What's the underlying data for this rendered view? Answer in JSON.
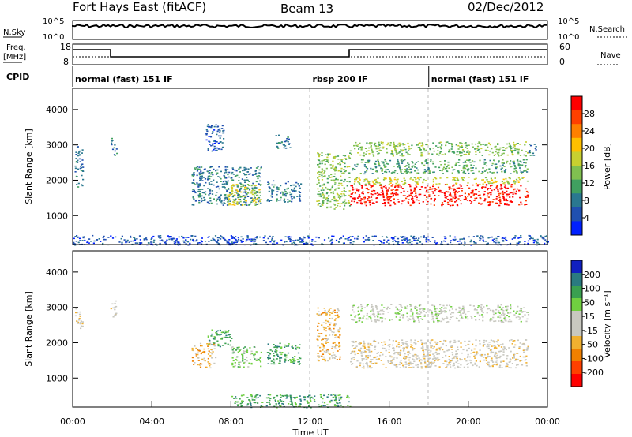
{
  "header": {
    "station": "Fort Hays East (fitACF)",
    "beam": "Beam 13",
    "date": "02/Dec/2012"
  },
  "panels": {
    "nsky_label": "N.Sky",
    "nsearch_label": "N.Search",
    "freq_label_1": "Freq.",
    "freq_label_2": "[MHz]",
    "nave_label": "Nave",
    "cpid_label": "CPID",
    "nsky_ticks": [
      "10^5",
      "10^0"
    ],
    "nsearch_ticks": [
      "10^5",
      "10^0"
    ],
    "freq_ticks": [
      "18",
      "8"
    ],
    "nave_ticks": [
      "60",
      "0"
    ]
  },
  "cpid": {
    "segments": [
      {
        "label": "normal (fast) 151 IF",
        "start": 0,
        "end": 12
      },
      {
        "label": "rbsp 200 IF",
        "start": 12,
        "end": 18
      },
      {
        "label": "normal (fast) 151 IF",
        "start": 18,
        "end": 24
      }
    ]
  },
  "colorbars": {
    "power": {
      "label": "Power [dB]",
      "ticks": [
        "28",
        "24",
        "20",
        "16",
        "12",
        "8",
        "4"
      ],
      "colors": [
        "#ff0000",
        "#ff4000",
        "#ff8000",
        "#ffc000",
        "#c8d030",
        "#80c050",
        "#40a060",
        "#2a7890",
        "#2050b0",
        "#0020ff"
      ]
    },
    "velocity": {
      "label": "Velocity [m s⁻¹]",
      "ticks": [
        "200",
        "100",
        "50",
        "15",
        "-15",
        "-50",
        "-100",
        "-200"
      ],
      "colors": [
        "#1020c0",
        "#2a7a80",
        "#3aa050",
        "#70d040",
        "#c8c8c0",
        "#c8c8c0",
        "#f0b030",
        "#f08000",
        "#ff4000",
        "#ff0000"
      ]
    }
  },
  "chart_data": [
    {
      "type": "heatmap",
      "title": "Power",
      "ylabel": "Slant Range [km]",
      "x_range_hours": [
        0,
        24
      ],
      "ylim": [
        180,
        4600
      ],
      "yticks": [
        1000,
        2000,
        3000,
        4000
      ],
      "regions": [
        {
          "t0": 0.1,
          "t1": 0.5,
          "r0": 1800,
          "r1": 3000,
          "level": 2
        },
        {
          "t0": 1.9,
          "t1": 2.2,
          "r0": 2700,
          "r1": 3200,
          "level": 2
        },
        {
          "t0": 6.0,
          "t1": 9.5,
          "r0": 1300,
          "r1": 2400,
          "level": 2
        },
        {
          "t0": 6.7,
          "t1": 7.6,
          "r0": 2800,
          "r1": 3600,
          "level": 1
        },
        {
          "t0": 7.8,
          "t1": 9.5,
          "r0": 1300,
          "r1": 1900,
          "level": 5
        },
        {
          "t0": 9.8,
          "t1": 11.5,
          "r0": 1400,
          "r1": 2000,
          "level": 2
        },
        {
          "t0": 10.2,
          "t1": 11.0,
          "r0": 2900,
          "r1": 3300,
          "level": 2
        },
        {
          "t0": 12.3,
          "t1": 14.0,
          "r0": 1200,
          "r1": 2800,
          "level": 4
        },
        {
          "t0": 14.0,
          "t1": 23.0,
          "r0": 1300,
          "r1": 1900,
          "level": 9
        },
        {
          "t0": 14.0,
          "t1": 23.0,
          "r0": 1900,
          "r1": 2100,
          "level": 5
        },
        {
          "t0": 14.0,
          "t1": 23.0,
          "r0": 2700,
          "r1": 3100,
          "level": 4
        },
        {
          "t0": 14.0,
          "t1": 23.0,
          "r0": 2200,
          "r1": 2600,
          "level": 3
        },
        {
          "t0": 23.0,
          "t1": 23.4,
          "r0": 2700,
          "r1": 3100,
          "level": 2
        },
        {
          "t0": 0.0,
          "t1": 24.0,
          "r0": 180,
          "r1": 450,
          "level": 1
        }
      ]
    },
    {
      "type": "heatmap",
      "title": "Velocity",
      "ylabel": "Slant Range [km]",
      "x_range_hours": [
        0,
        24
      ],
      "ylim": [
        180,
        4600
      ],
      "yticks": [
        1000,
        2000,
        3000,
        4000
      ],
      "xticks": [
        "00:00",
        "04:00",
        "08:00",
        "12:00",
        "16:00",
        "20:00",
        "00:00"
      ],
      "xlabel": "Time UT",
      "regions": [
        {
          "t0": 0.1,
          "t1": 0.5,
          "r0": 2400,
          "r1": 3000,
          "level": 4
        },
        {
          "t0": 1.9,
          "t1": 2.2,
          "r0": 2700,
          "r1": 3200,
          "level": 4
        },
        {
          "t0": 6.0,
          "t1": 7.2,
          "r0": 1300,
          "r1": 2000,
          "level": 3
        },
        {
          "t0": 6.8,
          "t1": 8.0,
          "r0": 1900,
          "r1": 2400,
          "level": 7
        },
        {
          "t0": 8.0,
          "t1": 9.5,
          "r0": 1300,
          "r1": 1900,
          "level": 6
        },
        {
          "t0": 9.8,
          "t1": 11.5,
          "r0": 1400,
          "r1": 2000,
          "level": 7
        },
        {
          "t0": 12.3,
          "t1": 13.5,
          "r0": 1500,
          "r1": 3000,
          "level": 3
        },
        {
          "t0": 14.0,
          "t1": 23.0,
          "r0": 1300,
          "r1": 2100,
          "level": 4
        },
        {
          "t0": 14.0,
          "t1": 23.0,
          "r0": 2600,
          "r1": 3100,
          "level": 5
        },
        {
          "t0": 8.0,
          "t1": 14.0,
          "r0": 180,
          "r1": 550,
          "level": 7
        }
      ]
    }
  ]
}
